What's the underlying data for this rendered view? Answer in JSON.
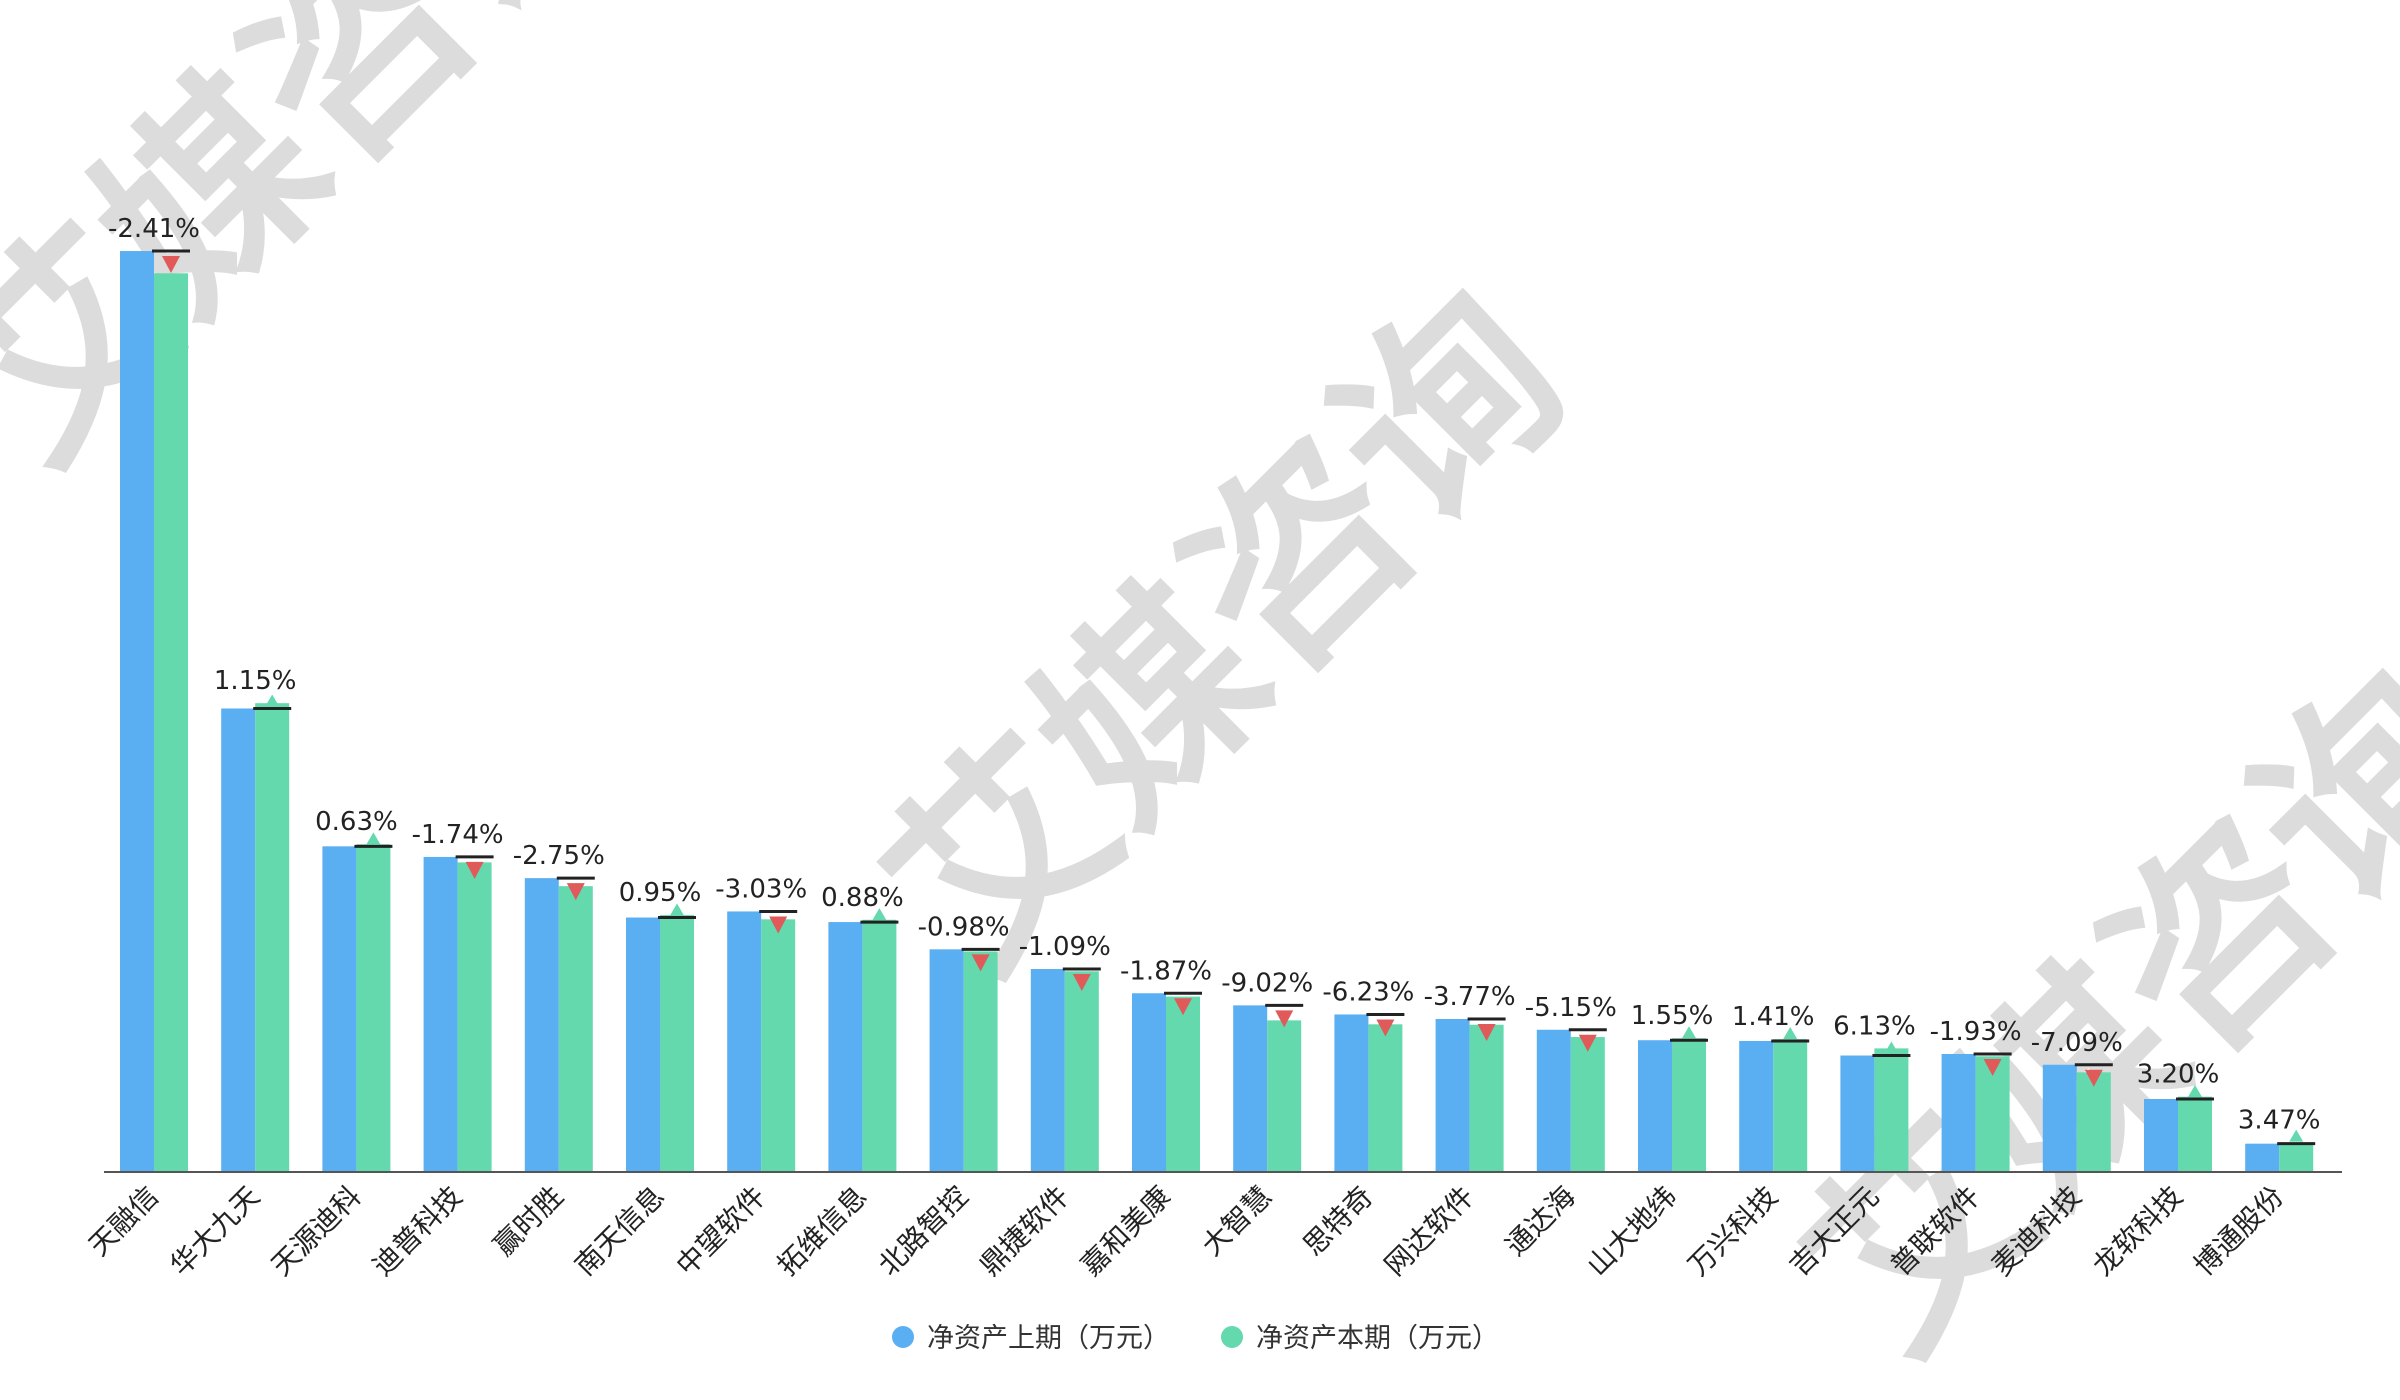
{
  "watermark_text": "艾媒咨询",
  "legend": [
    {
      "label": "净资产上期（万元）",
      "color": "#5aaef2"
    },
    {
      "label": "净资产本期（万元）",
      "color": "#63d9ad"
    }
  ],
  "colors": {
    "prev": "#5aaef2",
    "curr": "#63d9ad",
    "down_marker": "#e05a5a",
    "up_marker": "#63d9ad",
    "cap_line": "#222222",
    "axis": "#555555"
  },
  "chart_data": {
    "type": "bar",
    "title": "",
    "xlabel": "",
    "ylabel": "",
    "ylim": [
      0,
      610000
    ],
    "grid": false,
    "legend_position": "bottom",
    "categories": [
      "天融信",
      "华大九天",
      "天源迪科",
      "迪普科技",
      "赢时胜",
      "南天信息",
      "中望软件",
      "拓维信息",
      "北路智控",
      "鼎捷软件",
      "嘉和美康",
      "大智慧",
      "思特奇",
      "网达软件",
      "通达海",
      "山大地纬",
      "万兴科技",
      "吉大正元",
      "普联软件",
      "麦迪科技",
      "龙软科技",
      "博通股份"
    ],
    "series": [
      {
        "name": "净资产上期（万元）",
        "values": [
          608000,
          306000,
          215000,
          208000,
          194000,
          168000,
          172000,
          165000,
          147000,
          134000,
          118000,
          110000,
          104000,
          101000,
          93900,
          87000,
          86500,
          76900,
          77900,
          70800,
          48200,
          18700
        ]
      },
      {
        "name": "净资产本期（万元）",
        "values": [
          593300,
          309500,
          216400,
          204400,
          188700,
          169600,
          166800,
          166500,
          145600,
          132500,
          115800,
          100100,
          97500,
          97200,
          89100,
          88300,
          87700,
          81600,
          76400,
          65800,
          49700,
          19400
        ]
      }
    ],
    "change_labels": [
      "-2.41%",
      "1.15%",
      "0.63%",
      "-1.74%",
      "-2.75%",
      "0.95%",
      "-3.03%",
      "0.88%",
      "-0.98%",
      "-1.09%",
      "-1.87%",
      "-9.02%",
      "-6.23%",
      "-3.77%",
      "-5.15%",
      "1.55%",
      "1.41%",
      "6.13%",
      "-1.93%",
      "-7.09%",
      "3.20%",
      "3.47%"
    ]
  }
}
